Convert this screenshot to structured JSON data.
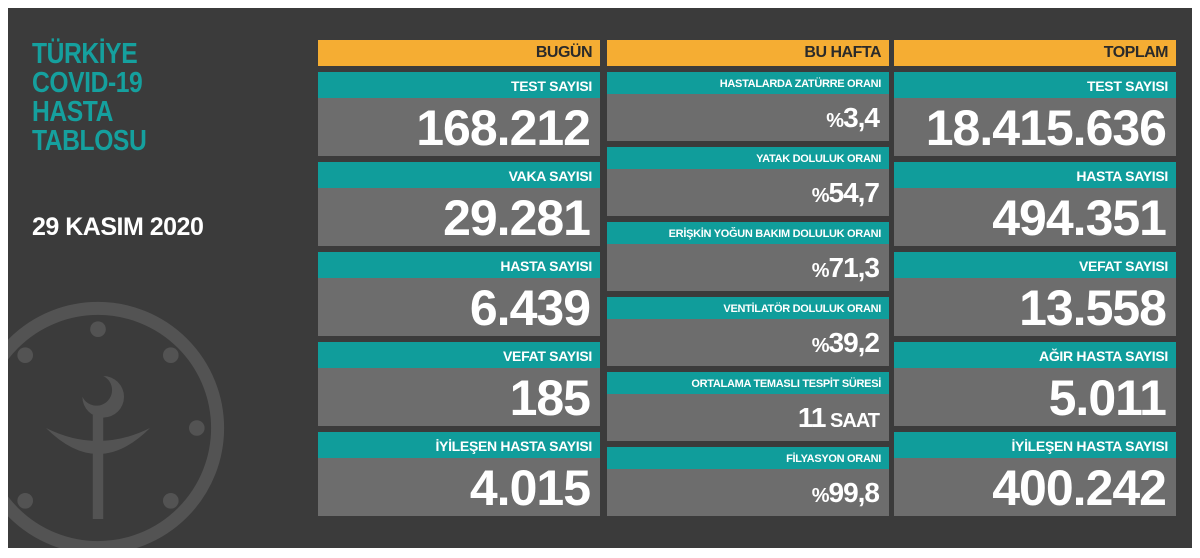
{
  "title_lines": [
    "TÜRKİYE",
    "COVID-19",
    "HASTA",
    "TABLOSU"
  ],
  "date": "29 KASIM 2020",
  "colors": {
    "background": "#3b3b3b",
    "header": "#f5ad33",
    "label": "#109d9b",
    "value": "#6d6d6d",
    "title": "#15a09e"
  },
  "today": {
    "header": "BUGÜN",
    "items": [
      {
        "label": "TEST SAYISI",
        "value": "168.212"
      },
      {
        "label": "VAKA SAYISI",
        "value": "29.281"
      },
      {
        "label": "HASTA SAYISI",
        "value": "6.439"
      },
      {
        "label": "VEFAT SAYISI",
        "value": "185"
      },
      {
        "label": "İYİLEŞEN HASTA SAYISI",
        "value": "4.015"
      }
    ]
  },
  "week": {
    "header": "BU HAFTA",
    "items": [
      {
        "label": "HASTALARDA ZATÜRRE ORANI",
        "prefix": "%",
        "value": "3,4",
        "suffix": ""
      },
      {
        "label": "YATAK DOLULUK ORANI",
        "prefix": "%",
        "value": "54,7",
        "suffix": ""
      },
      {
        "label": "ERİŞKİN YOĞUN BAKIM DOLULUK ORANI",
        "prefix": "%",
        "value": "71,3",
        "suffix": ""
      },
      {
        "label": "VENTİLATÖR DOLULUK ORANI",
        "prefix": "%",
        "value": "39,2",
        "suffix": ""
      },
      {
        "label": "ORTALAMA TEMASLI TESPİT SÜRESİ",
        "prefix": "",
        "value": "11",
        "suffix": " SAAT"
      },
      {
        "label": "FİLYASYON ORANI",
        "prefix": "%",
        "value": "99,8",
        "suffix": ""
      }
    ]
  },
  "total": {
    "header": "TOPLAM",
    "items": [
      {
        "label": "TEST SAYISI",
        "value": "18.415.636"
      },
      {
        "label": "HASTA SAYISI",
        "value": "494.351"
      },
      {
        "label": "VEFAT SAYISI",
        "value": "13.558"
      },
      {
        "label": "AĞIR HASTA SAYISI",
        "value": "5.011"
      },
      {
        "label": "İYİLEŞEN HASTA SAYISI",
        "value": "400.242"
      }
    ]
  }
}
